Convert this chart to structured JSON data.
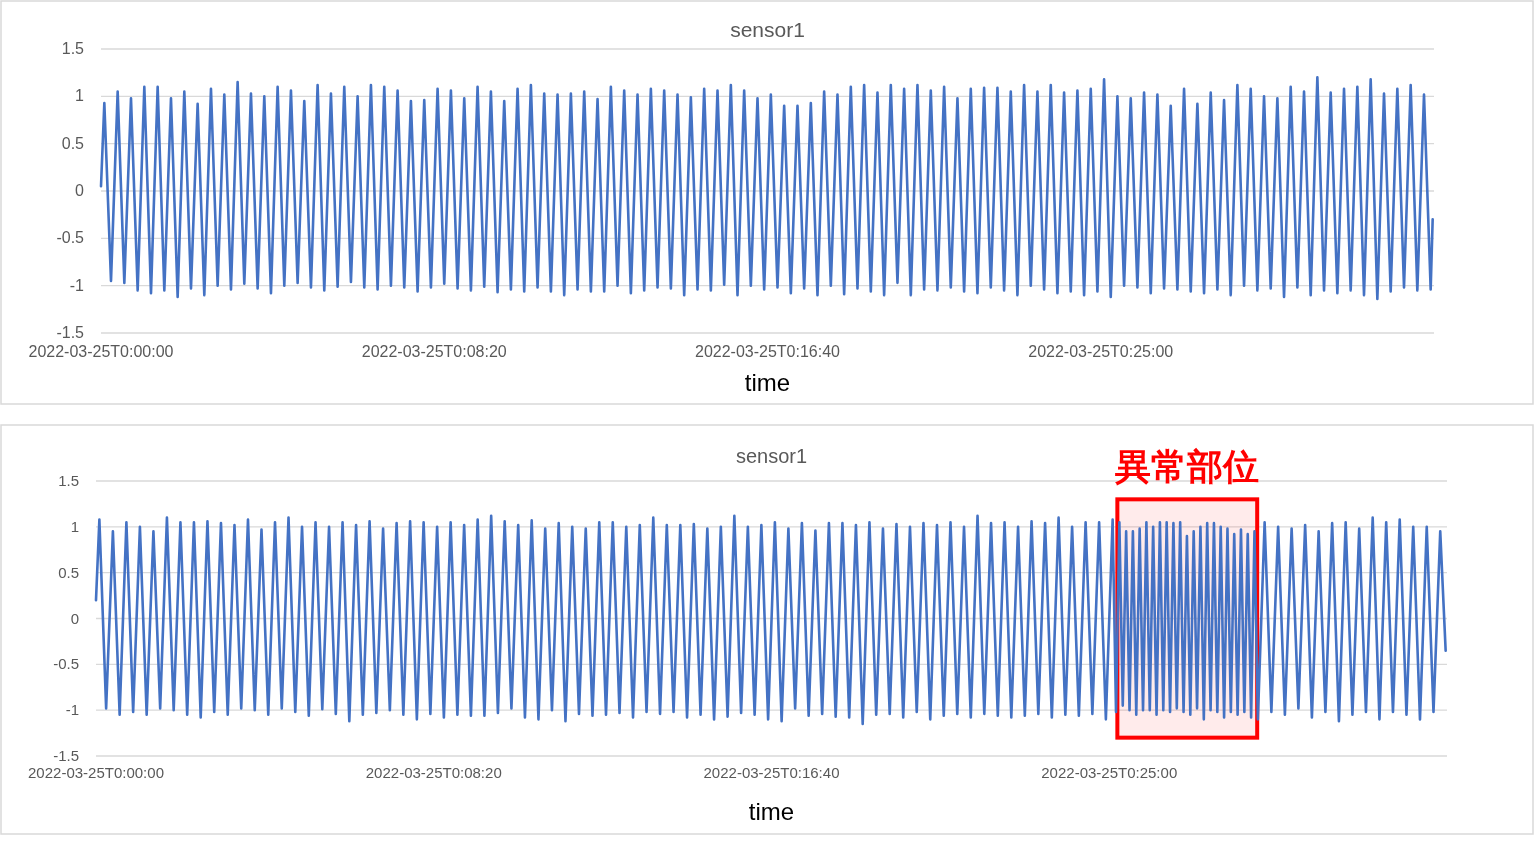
{
  "chart_data": [
    {
      "type": "line",
      "title": "sensor1",
      "xlabel": "time",
      "grid": "y",
      "xlim": [
        "2022-03-25T00:00:00",
        "2022-03-25T00:33:20"
      ],
      "xticks": [
        {
          "value": "2022-03-25T00:00:00",
          "label": "2022-03-25T0:00:00"
        },
        {
          "value": "2022-03-25T00:08:20",
          "label": "2022-03-25T0:08:20"
        },
        {
          "value": "2022-03-25T00:16:40",
          "label": "2022-03-25T0:16:40"
        },
        {
          "value": "2022-03-25T00:25:00",
          "label": "2022-03-25T0:25:00"
        }
      ],
      "ylim": [
        -1.5,
        1.5
      ],
      "yticks": [
        -1.5,
        -1,
        -0.5,
        0,
        0.5,
        1,
        1.5
      ],
      "x": [
        "2022-03-25T00:00:00",
        "2022-03-25T00:00:05",
        "2022-03-25T00:00:15",
        "2022-03-25T00:00:25",
        "2022-03-25T00:00:35",
        "2022-03-25T00:00:45",
        "2022-03-25T00:00:55",
        "2022-03-25T00:01:05",
        "2022-03-25T00:01:15",
        "2022-03-25T00:01:25",
        "2022-03-25T00:01:35",
        "2022-03-25T00:01:45",
        "2022-03-25T00:01:55",
        "2022-03-25T00:02:05",
        "2022-03-25T00:02:15",
        "2022-03-25T00:02:25",
        "2022-03-25T00:02:35",
        "2022-03-25T00:02:45",
        "2022-03-25T00:02:55",
        "2022-03-25T00:03:05",
        "2022-03-25T00:03:15",
        "2022-03-25T00:03:25",
        "2022-03-25T00:03:35",
        "2022-03-25T00:03:45",
        "2022-03-25T00:03:55",
        "2022-03-25T00:04:05",
        "2022-03-25T00:04:15",
        "2022-03-25T00:04:25",
        "2022-03-25T00:04:35",
        "2022-03-25T00:04:45",
        "2022-03-25T00:04:55",
        "2022-03-25T00:05:05",
        "2022-03-25T00:05:15",
        "2022-03-25T00:05:25",
        "2022-03-25T00:05:35",
        "2022-03-25T00:05:45",
        "2022-03-25T00:05:55",
        "2022-03-25T00:06:05",
        "2022-03-25T00:06:15",
        "2022-03-25T00:06:25",
        "2022-03-25T00:06:35",
        "2022-03-25T00:06:45",
        "2022-03-25T00:06:55",
        "2022-03-25T00:07:05",
        "2022-03-25T00:07:15",
        "2022-03-25T00:07:25",
        "2022-03-25T00:07:35",
        "2022-03-25T00:07:45",
        "2022-03-25T00:07:55",
        "2022-03-25T00:08:05",
        "2022-03-25T00:08:15",
        "2022-03-25T00:08:25",
        "2022-03-25T00:08:35",
        "2022-03-25T00:08:45",
        "2022-03-25T00:08:55",
        "2022-03-25T00:09:05",
        "2022-03-25T00:09:15",
        "2022-03-25T00:09:25",
        "2022-03-25T00:09:35",
        "2022-03-25T00:09:45",
        "2022-03-25T00:09:55",
        "2022-03-25T00:10:05",
        "2022-03-25T00:10:15",
        "2022-03-25T00:10:25",
        "2022-03-25T00:10:35",
        "2022-03-25T00:10:45",
        "2022-03-25T00:10:55",
        "2022-03-25T00:11:05",
        "2022-03-25T00:11:15",
        "2022-03-25T00:11:25",
        "2022-03-25T00:11:35",
        "2022-03-25T00:11:45",
        "2022-03-25T00:11:55",
        "2022-03-25T00:12:05",
        "2022-03-25T00:12:15",
        "2022-03-25T00:12:25",
        "2022-03-25T00:12:35",
        "2022-03-25T00:12:45",
        "2022-03-25T00:12:55",
        "2022-03-25T00:13:05",
        "2022-03-25T00:13:15",
        "2022-03-25T00:13:25",
        "2022-03-25T00:13:35",
        "2022-03-25T00:13:45",
        "2022-03-25T00:13:55",
        "2022-03-25T00:14:05",
        "2022-03-25T00:14:15",
        "2022-03-25T00:14:25",
        "2022-03-25T00:14:35",
        "2022-03-25T00:14:45",
        "2022-03-25T00:14:55",
        "2022-03-25T00:15:05",
        "2022-03-25T00:15:15",
        "2022-03-25T00:15:25",
        "2022-03-25T00:15:35",
        "2022-03-25T00:15:45",
        "2022-03-25T00:15:55",
        "2022-03-25T00:16:05",
        "2022-03-25T00:16:15",
        "2022-03-25T00:16:25",
        "2022-03-25T00:16:35",
        "2022-03-25T00:16:45",
        "2022-03-25T00:16:55",
        "2022-03-25T00:17:05",
        "2022-03-25T00:17:15",
        "2022-03-25T00:17:25",
        "2022-03-25T00:17:35",
        "2022-03-25T00:17:45",
        "2022-03-25T00:17:55",
        "2022-03-25T00:18:05",
        "2022-03-25T00:18:15",
        "2022-03-25T00:18:25",
        "2022-03-25T00:18:35",
        "2022-03-25T00:18:45",
        "2022-03-25T00:18:55",
        "2022-03-25T00:19:05",
        "2022-03-25T00:19:15",
        "2022-03-25T00:19:25",
        "2022-03-25T00:19:35",
        "2022-03-25T00:19:45",
        "2022-03-25T00:19:55",
        "2022-03-25T00:20:05",
        "2022-03-25T00:20:15",
        "2022-03-25T00:20:25",
        "2022-03-25T00:20:35",
        "2022-03-25T00:20:45",
        "2022-03-25T00:20:55",
        "2022-03-25T00:21:05",
        "2022-03-25T00:21:15",
        "2022-03-25T00:21:25",
        "2022-03-25T00:21:35",
        "2022-03-25T00:21:45",
        "2022-03-25T00:21:55",
        "2022-03-25T00:22:05",
        "2022-03-25T00:22:15",
        "2022-03-25T00:22:25",
        "2022-03-25T00:22:35",
        "2022-03-25T00:22:45",
        "2022-03-25T00:22:55",
        "2022-03-25T00:23:05",
        "2022-03-25T00:23:15",
        "2022-03-25T00:23:25",
        "2022-03-25T00:23:35",
        "2022-03-25T00:23:45",
        "2022-03-25T00:23:55",
        "2022-03-25T00:24:05",
        "2022-03-25T00:24:15",
        "2022-03-25T00:24:25",
        "2022-03-25T00:24:35",
        "2022-03-25T00:24:45",
        "2022-03-25T00:24:55",
        "2022-03-25T00:25:05",
        "2022-03-25T00:25:15",
        "2022-03-25T00:25:25",
        "2022-03-25T00:25:35",
        "2022-03-25T00:25:45",
        "2022-03-25T00:25:55",
        "2022-03-25T00:26:05",
        "2022-03-25T00:26:15",
        "2022-03-25T00:26:25",
        "2022-03-25T00:26:35",
        "2022-03-25T00:26:45",
        "2022-03-25T00:26:55",
        "2022-03-25T00:27:05",
        "2022-03-25T00:27:15",
        "2022-03-25T00:27:25",
        "2022-03-25T00:27:35",
        "2022-03-25T00:27:45",
        "2022-03-25T00:27:55",
        "2022-03-25T00:28:05",
        "2022-03-25T00:28:15",
        "2022-03-25T00:28:25",
        "2022-03-25T00:28:35",
        "2022-03-25T00:28:45",
        "2022-03-25T00:28:55",
        "2022-03-25T00:29:05",
        "2022-03-25T00:29:15",
        "2022-03-25T00:29:25",
        "2022-03-25T00:29:35",
        "2022-03-25T00:29:45",
        "2022-03-25T00:29:55",
        "2022-03-25T00:30:05",
        "2022-03-25T00:30:15",
        "2022-03-25T00:30:25",
        "2022-03-25T00:30:35",
        "2022-03-25T00:30:45",
        "2022-03-25T00:30:55",
        "2022-03-25T00:31:05",
        "2022-03-25T00:31:15",
        "2022-03-25T00:31:25",
        "2022-03-25T00:31:35",
        "2022-03-25T00:31:45",
        "2022-03-25T00:31:55",
        "2022-03-25T00:32:05",
        "2022-03-25T00:32:15",
        "2022-03-25T00:32:25",
        "2022-03-25T00:32:35",
        "2022-03-25T00:32:45",
        "2022-03-25T00:32:55",
        "2022-03-25T00:33:05",
        "2022-03-25T00:33:15",
        "2022-03-25T00:33:18"
      ],
      "series": [
        {
          "color": "#4472c4",
          "values": [
            0.05,
            0.93,
            -0.95,
            1.05,
            -0.97,
            0.98,
            -1.05,
            1.1,
            -1.08,
            1.1,
            -1.05,
            0.98,
            -1.12,
            1.05,
            -1.03,
            0.92,
            -1.1,
            1.08,
            -1.0,
            1.02,
            -1.04,
            1.15,
            -0.98,
            1.03,
            -1.03,
            1.0,
            -1.08,
            1.1,
            -1.0,
            1.06,
            -0.97,
            0.95,
            -1.02,
            1.12,
            -1.05,
            1.03,
            -1.01,
            1.1,
            -0.96,
            1.0,
            -1.02,
            1.12,
            -1.04,
            1.1,
            -1.0,
            1.06,
            -1.02,
            0.95,
            -1.06,
            0.96,
            -1.02,
            1.08,
            -0.98,
            1.06,
            -1.03,
            0.98,
            -1.05,
            1.1,
            -1.01,
            1.05,
            -1.07,
            0.95,
            -1.04,
            1.08,
            -1.06,
            1.12,
            -1.02,
            1.03,
            -1.06,
            1.02,
            -1.1,
            1.03,
            -1.04,
            1.05,
            -1.06,
            0.97,
            -1.06,
            1.1,
            -1.0,
            1.06,
            -1.08,
            1.02,
            -1.05,
            1.08,
            -1.02,
            1.06,
            -1.03,
            1.02,
            -1.1,
            0.99,
            -1.04,
            1.08,
            -1.05,
            1.06,
            -0.99,
            1.12,
            -1.1,
            1.06,
            -1.0,
            0.98,
            -1.04,
            1.02,
            -1.02,
            0.9,
            -1.08,
            0.9,
            -1.03,
            0.93,
            -1.1,
            1.05,
            -1.0,
            1.02,
            -1.09,
            1.1,
            -1.03,
            1.12,
            -1.06,
            1.04,
            -1.1,
            1.12,
            -0.97,
            1.08,
            -1.1,
            1.12,
            -1.04,
            1.06,
            -1.05,
            1.1,
            -1.02,
            0.98,
            -1.06,
            1.08,
            -1.08,
            1.09,
            -1.02,
            1.09,
            -1.05,
            1.05,
            -1.1,
            1.12,
            -1.0,
            1.05,
            -1.04,
            1.12,
            -1.08,
            1.04,
            -1.06,
            1.06,
            -1.1,
            1.08,
            -1.06,
            1.18,
            -1.12,
            1.0,
            -1.0,
            0.98,
            -1.02,
            1.04,
            -1.08,
            1.02,
            -1.03,
            0.9,
            -1.04,
            1.08,
            -1.06,
            0.92,
            -1.08,
            1.04,
            -1.04,
            0.96,
            -1.1,
            1.12,
            -1.0,
            1.08,
            -1.05,
            1.0,
            -1.03,
            0.98,
            -1.12,
            1.1,
            -1.02,
            1.05,
            -1.1,
            1.2,
            -1.05,
            1.04,
            -1.08,
            1.08,
            -1.05,
            1.1,
            -1.1,
            1.18,
            -1.14,
            1.03,
            -1.06,
            1.08,
            -1.02,
            1.12,
            -1.05,
            1.02,
            -1.04,
            -0.3
          ]
        }
      ]
    },
    {
      "type": "line",
      "title": "sensor1",
      "xlabel": "time",
      "grid": "y",
      "xlim": [
        "2022-03-25T00:00:00",
        "2022-03-25T00:33:20"
      ],
      "xticks": [
        {
          "value": "2022-03-25T00:00:00",
          "label": "2022-03-25T0:00:00"
        },
        {
          "value": "2022-03-25T00:08:20",
          "label": "2022-03-25T0:08:20"
        },
        {
          "value": "2022-03-25T00:16:40",
          "label": "2022-03-25T0:16:40"
        },
        {
          "value": "2022-03-25T00:25:00",
          "label": "2022-03-25T0:25:00"
        }
      ],
      "ylim": [
        -1.5,
        1.5
      ],
      "yticks": [
        -1.5,
        -1,
        -0.5,
        0,
        0.5,
        1,
        1.5
      ],
      "bands": [
        {
          "axis": "x",
          "from": "2022-03-25T00:25:12",
          "to": "2022-03-25T00:28:39",
          "label": "異常部位",
          "color": "#ff0000"
        }
      ],
      "x": [
        "2022-03-25T00:00:00",
        "2022-03-25T00:00:05",
        "2022-03-25T00:00:15",
        "2022-03-25T00:00:25",
        "2022-03-25T00:00:35",
        "2022-03-25T00:00:45",
        "2022-03-25T00:00:55",
        "2022-03-25T00:01:05",
        "2022-03-25T00:01:15",
        "2022-03-25T00:01:25",
        "2022-03-25T00:01:35",
        "2022-03-25T00:01:45",
        "2022-03-25T00:01:55",
        "2022-03-25T00:02:05",
        "2022-03-25T00:02:15",
        "2022-03-25T00:02:25",
        "2022-03-25T00:02:35",
        "2022-03-25T00:02:45",
        "2022-03-25T00:02:55",
        "2022-03-25T00:03:05",
        "2022-03-25T00:03:15",
        "2022-03-25T00:03:25",
        "2022-03-25T00:03:35",
        "2022-03-25T00:03:45",
        "2022-03-25T00:03:55",
        "2022-03-25T00:04:05",
        "2022-03-25T00:04:15",
        "2022-03-25T00:04:25",
        "2022-03-25T00:04:35",
        "2022-03-25T00:04:45",
        "2022-03-25T00:04:55",
        "2022-03-25T00:05:05",
        "2022-03-25T00:05:15",
        "2022-03-25T00:05:25",
        "2022-03-25T00:05:35",
        "2022-03-25T00:05:45",
        "2022-03-25T00:05:55",
        "2022-03-25T00:06:05",
        "2022-03-25T00:06:15",
        "2022-03-25T00:06:25",
        "2022-03-25T00:06:35",
        "2022-03-25T00:06:45",
        "2022-03-25T00:06:55",
        "2022-03-25T00:07:05",
        "2022-03-25T00:07:15",
        "2022-03-25T00:07:25",
        "2022-03-25T00:07:35",
        "2022-03-25T00:07:45",
        "2022-03-25T00:07:55",
        "2022-03-25T00:08:05",
        "2022-03-25T00:08:15",
        "2022-03-25T00:08:25",
        "2022-03-25T00:08:35",
        "2022-03-25T00:08:45",
        "2022-03-25T00:08:55",
        "2022-03-25T00:09:05",
        "2022-03-25T00:09:15",
        "2022-03-25T00:09:25",
        "2022-03-25T00:09:35",
        "2022-03-25T00:09:45",
        "2022-03-25T00:09:55",
        "2022-03-25T00:10:05",
        "2022-03-25T00:10:15",
        "2022-03-25T00:10:25",
        "2022-03-25T00:10:35",
        "2022-03-25T00:10:45",
        "2022-03-25T00:10:55",
        "2022-03-25T00:11:05",
        "2022-03-25T00:11:15",
        "2022-03-25T00:11:25",
        "2022-03-25T00:11:35",
        "2022-03-25T00:11:45",
        "2022-03-25T00:11:55",
        "2022-03-25T00:12:05",
        "2022-03-25T00:12:15",
        "2022-03-25T00:12:25",
        "2022-03-25T00:12:35",
        "2022-03-25T00:12:45",
        "2022-03-25T00:12:55",
        "2022-03-25T00:13:05",
        "2022-03-25T00:13:15",
        "2022-03-25T00:13:25",
        "2022-03-25T00:13:35",
        "2022-03-25T00:13:45",
        "2022-03-25T00:13:55",
        "2022-03-25T00:14:05",
        "2022-03-25T00:14:15",
        "2022-03-25T00:14:25",
        "2022-03-25T00:14:35",
        "2022-03-25T00:14:45",
        "2022-03-25T00:14:55",
        "2022-03-25T00:15:05",
        "2022-03-25T00:15:15",
        "2022-03-25T00:15:25",
        "2022-03-25T00:15:35",
        "2022-03-25T00:15:45",
        "2022-03-25T00:15:55",
        "2022-03-25T00:16:05",
        "2022-03-25T00:16:15",
        "2022-03-25T00:16:25",
        "2022-03-25T00:16:35",
        "2022-03-25T00:16:45",
        "2022-03-25T00:16:55",
        "2022-03-25T00:17:05",
        "2022-03-25T00:17:15",
        "2022-03-25T00:17:25",
        "2022-03-25T00:17:35",
        "2022-03-25T00:17:45",
        "2022-03-25T00:17:55",
        "2022-03-25T00:18:05",
        "2022-03-25T00:18:15",
        "2022-03-25T00:18:25",
        "2022-03-25T00:18:35",
        "2022-03-25T00:18:45",
        "2022-03-25T00:18:55",
        "2022-03-25T00:19:05",
        "2022-03-25T00:19:15",
        "2022-03-25T00:19:25",
        "2022-03-25T00:19:35",
        "2022-03-25T00:19:45",
        "2022-03-25T00:19:55",
        "2022-03-25T00:20:05",
        "2022-03-25T00:20:15",
        "2022-03-25T00:20:25",
        "2022-03-25T00:20:35",
        "2022-03-25T00:20:45",
        "2022-03-25T00:20:55",
        "2022-03-25T00:21:05",
        "2022-03-25T00:21:15",
        "2022-03-25T00:21:25",
        "2022-03-25T00:21:35",
        "2022-03-25T00:21:45",
        "2022-03-25T00:21:55",
        "2022-03-25T00:22:05",
        "2022-03-25T00:22:15",
        "2022-03-25T00:22:25",
        "2022-03-25T00:22:35",
        "2022-03-25T00:22:45",
        "2022-03-25T00:22:55",
        "2022-03-25T00:23:05",
        "2022-03-25T00:23:15",
        "2022-03-25T00:23:25",
        "2022-03-25T00:23:35",
        "2022-03-25T00:23:45",
        "2022-03-25T00:23:55",
        "2022-03-25T00:24:05",
        "2022-03-25T00:24:15",
        "2022-03-25T00:24:25",
        "2022-03-25T00:24:35",
        "2022-03-25T00:24:45",
        "2022-03-25T00:24:55",
        "2022-03-25T00:25:05",
        "2022-03-25T00:25:10",
        "2022-03-25T00:25:15",
        "2022-03-25T00:25:20",
        "2022-03-25T00:25:25",
        "2022-03-25T00:25:30",
        "2022-03-25T00:25:35",
        "2022-03-25T00:25:40",
        "2022-03-25T00:25:45",
        "2022-03-25T00:25:50",
        "2022-03-25T00:25:55",
        "2022-03-25T00:26:00",
        "2022-03-25T00:26:05",
        "2022-03-25T00:26:10",
        "2022-03-25T00:26:15",
        "2022-03-25T00:26:20",
        "2022-03-25T00:26:25",
        "2022-03-25T00:26:30",
        "2022-03-25T00:26:35",
        "2022-03-25T00:26:40",
        "2022-03-25T00:26:45",
        "2022-03-25T00:26:50",
        "2022-03-25T00:26:55",
        "2022-03-25T00:27:00",
        "2022-03-25T00:27:05",
        "2022-03-25T00:27:10",
        "2022-03-25T00:27:15",
        "2022-03-25T00:27:20",
        "2022-03-25T00:27:25",
        "2022-03-25T00:27:30",
        "2022-03-25T00:27:35",
        "2022-03-25T00:27:40",
        "2022-03-25T00:27:45",
        "2022-03-25T00:27:50",
        "2022-03-25T00:27:55",
        "2022-03-25T00:28:00",
        "2022-03-25T00:28:05",
        "2022-03-25T00:28:10",
        "2022-03-25T00:28:15",
        "2022-03-25T00:28:20",
        "2022-03-25T00:28:25",
        "2022-03-25T00:28:30",
        "2022-03-25T00:28:35",
        "2022-03-25T00:28:40",
        "2022-03-25T00:28:50",
        "2022-03-25T00:29:00",
        "2022-03-25T00:29:10",
        "2022-03-25T00:29:20",
        "2022-03-25T00:29:30",
        "2022-03-25T00:29:40",
        "2022-03-25T00:29:50",
        "2022-03-25T00:30:00",
        "2022-03-25T00:30:10",
        "2022-03-25T00:30:20",
        "2022-03-25T00:30:30",
        "2022-03-25T00:30:40",
        "2022-03-25T00:30:50",
        "2022-03-25T00:31:00",
        "2022-03-25T00:31:10",
        "2022-03-25T00:31:20",
        "2022-03-25T00:31:30",
        "2022-03-25T00:31:40",
        "2022-03-25T00:31:50",
        "2022-03-25T00:32:00",
        "2022-03-25T00:32:10",
        "2022-03-25T00:32:20",
        "2022-03-25T00:32:30",
        "2022-03-25T00:32:40",
        "2022-03-25T00:32:50",
        "2022-03-25T00:33:00",
        "2022-03-25T00:33:10",
        "2022-03-25T00:33:18"
      ],
      "series": [
        {
          "color": "#4472c4",
          "values": [
            0.2,
            1.08,
            -0.98,
            0.95,
            -1.05,
            1.05,
            -1.02,
            1.0,
            -1.05,
            0.95,
            -0.98,
            1.1,
            -1.0,
            1.05,
            -1.05,
            1.05,
            -1.08,
            1.06,
            -1.02,
            1.04,
            -1.05,
            1.02,
            -0.98,
            1.08,
            -1.0,
            0.97,
            -1.05,
            1.05,
            -0.98,
            1.1,
            -1.02,
            1.0,
            -1.06,
            1.05,
            -0.99,
            1.0,
            -1.04,
            1.05,
            -1.12,
            1.02,
            -1.05,
            1.06,
            -1.03,
            0.98,
            -1.0,
            1.04,
            -1.05,
            1.06,
            -1.1,
            1.05,
            -1.04,
            1.0,
            -1.08,
            1.05,
            -1.05,
            1.02,
            -1.06,
            1.08,
            -1.06,
            1.12,
            -1.03,
            1.06,
            -0.98,
            1.02,
            -1.08,
            1.07,
            -1.1,
            0.98,
            -1.0,
            1.04,
            -1.12,
            1.0,
            -1.04,
            0.98,
            -1.06,
            1.05,
            -1.05,
            1.05,
            -1.03,
            1.0,
            -1.08,
            1.02,
            -1.02,
            1.1,
            -1.04,
            1.02,
            -1.02,
            1.02,
            -1.08,
            1.03,
            -1.05,
            0.98,
            -1.1,
            1.0,
            -1.07,
            1.12,
            -1.03,
            1.0,
            -1.05,
            1.02,
            -1.1,
            1.05,
            -1.12,
            0.98,
            -0.98,
            1.04,
            -1.06,
            0.96,
            -1.04,
            1.04,
            -1.07,
            1.04,
            -1.08,
            1.02,
            -1.15,
            1.05,
            -1.05,
            0.98,
            -1.04,
            1.03,
            -1.08,
            1.0,
            -1.02,
            1.04,
            -1.1,
            1.02,
            -1.06,
            1.05,
            -1.04,
            1.0,
            -1.08,
            1.12,
            -1.04,
            1.04,
            -1.06,
            1.05,
            -1.08,
            1.0,
            -1.06,
            1.06,
            -1.04,
            1.04,
            -1.08,
            1.1,
            -1.05,
            1.0,
            -1.06,
            1.05,
            -1.04,
            1.05,
            -1.1,
            1.08,
            -1.02,
            1.05,
            -0.95,
            0.95,
            -1.0,
            0.95,
            -1.05,
            0.98,
            -1.0,
            1.05,
            -1.0,
            1.0,
            -1.05,
            1.05,
            -1.0,
            1.05,
            -1.02,
            1.04,
            -0.98,
            1.05,
            -1.02,
            0.9,
            -1.05,
            0.95,
            -0.98,
            1.0,
            -1.1,
            1.04,
            -1.0,
            1.04,
            -1.02,
            1.0,
            -1.08,
            0.98,
            -1.02,
            0.92,
            -1.05,
            0.97,
            -1.02,
            0.92,
            -1.08,
            0.95,
            -1.1,
            1.05,
            -1.02,
            1.0,
            -1.05,
            0.98,
            -0.98,
            1.02,
            -1.08,
            0.95,
            -1.02,
            1.04,
            -1.12,
            1.05,
            -1.05,
            0.98,
            -1.02,
            1.1,
            -1.1,
            1.05,
            -1.02,
            1.08,
            -1.05,
            1.0,
            -1.1,
            1.0,
            -1.02,
            0.95,
            -0.35
          ]
        }
      ]
    }
  ]
}
